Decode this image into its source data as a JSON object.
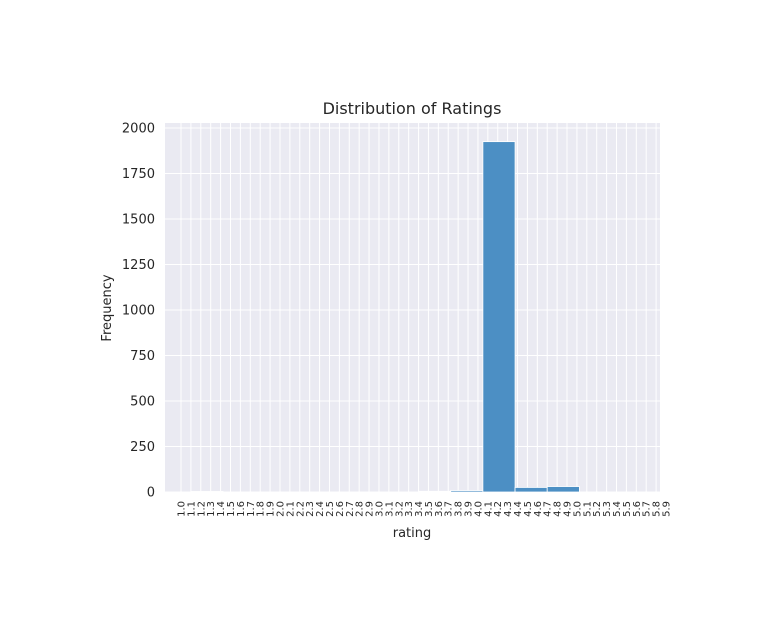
{
  "chart_data": {
    "type": "bar",
    "title": "Distribution of Ratings",
    "xlabel": "rating",
    "ylabel": "Frequency",
    "ylim": [
      0,
      2000
    ],
    "yticks": [
      0,
      250,
      500,
      750,
      1000,
      1250,
      1500,
      1750,
      2000
    ],
    "xlim": [
      1.0,
      5.9
    ],
    "xticks": [
      "1.0",
      "1.1",
      "1.2",
      "1.3",
      "1.4",
      "1.5",
      "1.6",
      "1.7",
      "1.8",
      "1.9",
      "2.0",
      "2.1",
      "2.2",
      "2.3",
      "2.4",
      "2.5",
      "2.6",
      "2.7",
      "2.8",
      "2.9",
      "3.0",
      "3.1",
      "3.2",
      "3.3",
      "3.4",
      "3.5",
      "3.6",
      "3.7",
      "3.8",
      "3.9",
      "4.0",
      "4.1",
      "4.2",
      "4.3",
      "4.4",
      "4.5",
      "4.6",
      "4.7",
      "4.8",
      "4.9",
      "5.0",
      "5.1",
      "5.2",
      "5.3",
      "5.4",
      "5.5",
      "5.6",
      "5.7",
      "5.8",
      "5.9"
    ],
    "bars": [
      {
        "x_start": 1.1,
        "x_end": 1.425,
        "value": 3
      },
      {
        "x_start": 3.4,
        "x_end": 3.725,
        "value": 4
      },
      {
        "x_start": 3.725,
        "x_end": 4.05,
        "value": 8
      },
      {
        "x_start": 4.05,
        "x_end": 4.375,
        "value": 1925
      },
      {
        "x_start": 4.375,
        "x_end": 4.7,
        "value": 25
      },
      {
        "x_start": 4.7,
        "x_end": 5.025,
        "value": 30
      }
    ],
    "grid": true,
    "colors": {
      "bar_fill": "#4c8fc4",
      "bar_stroke": "#ffffff",
      "plot_background": "#eaeaf2",
      "grid": "#ffffff"
    }
  }
}
